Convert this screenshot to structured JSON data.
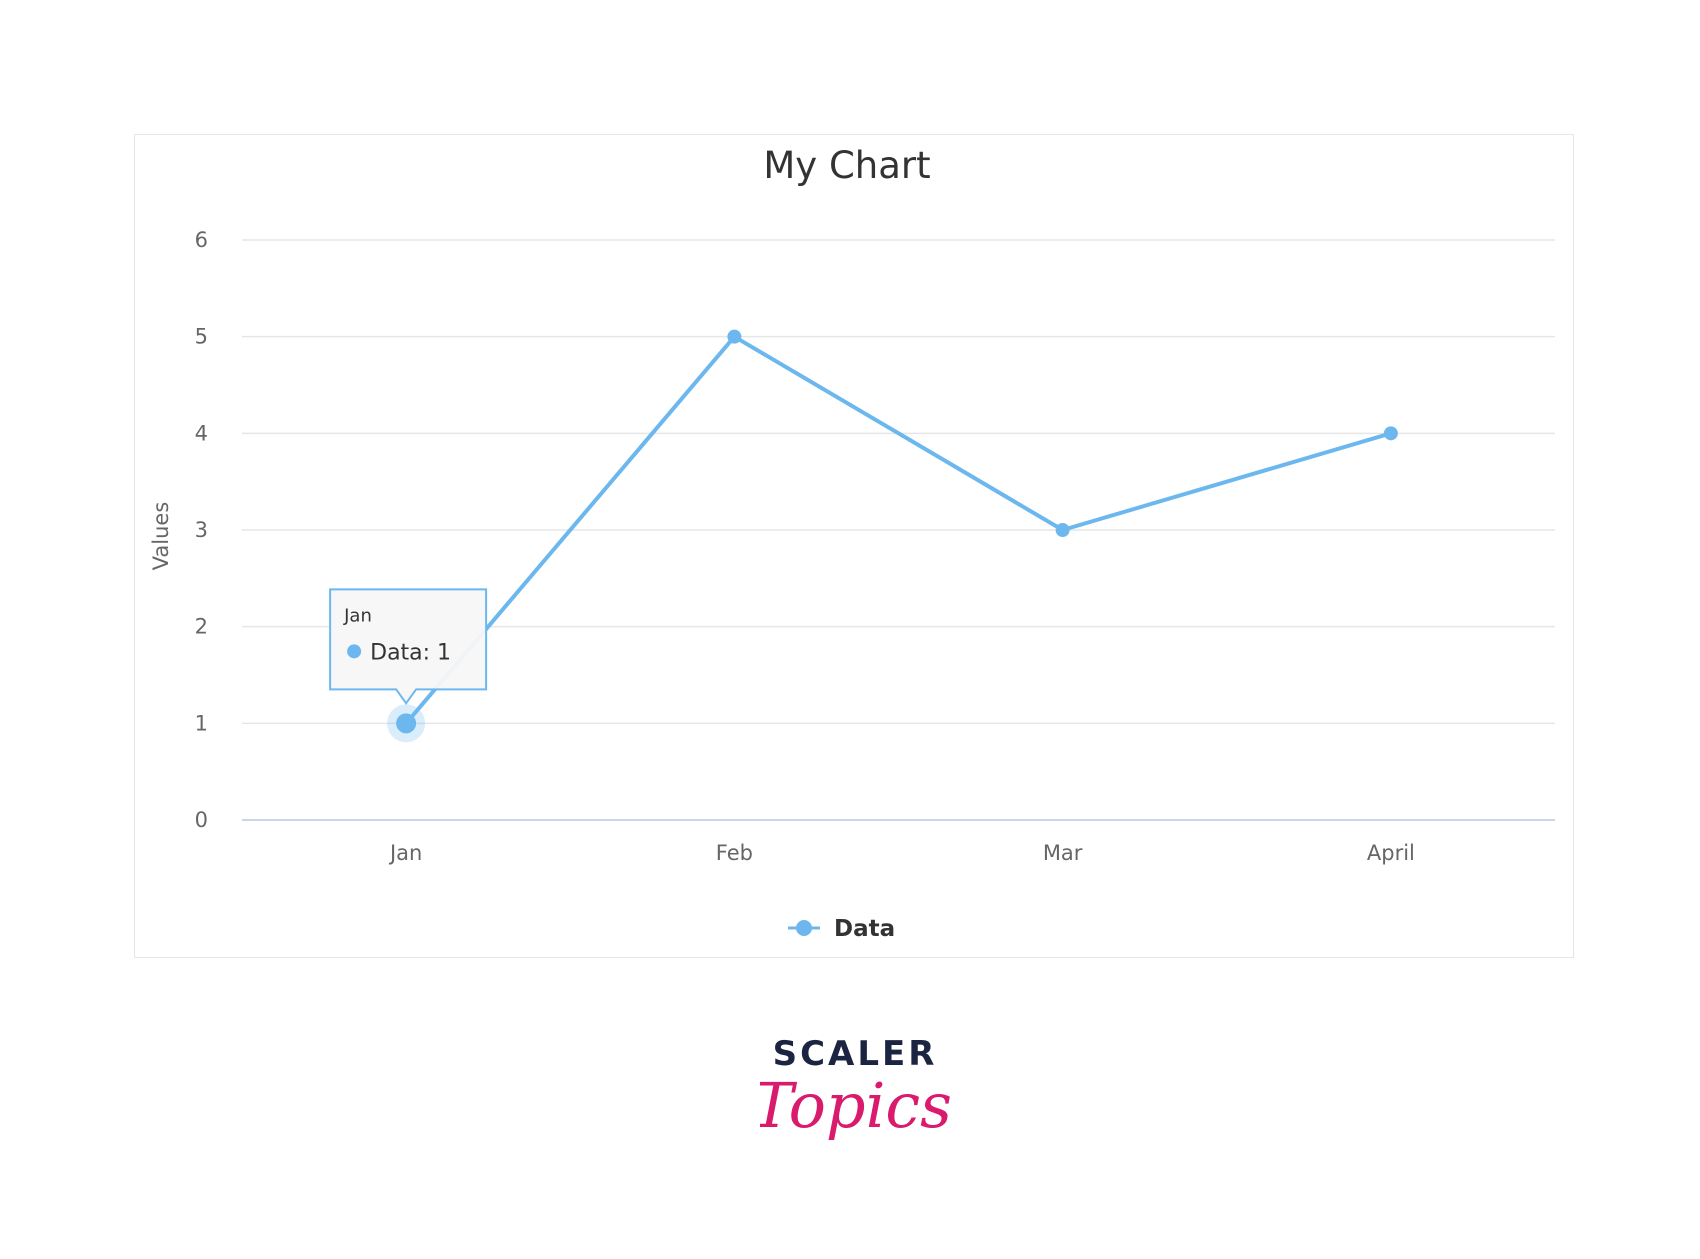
{
  "chart_data": {
    "type": "line",
    "title": "My Chart",
    "ylabel": "Values",
    "xlabel": "",
    "categories": [
      "Jan",
      "Feb",
      "Mar",
      "April"
    ],
    "series": [
      {
        "name": "Data",
        "values": [
          1,
          5,
          3,
          4
        ],
        "color": "#6cb8ee"
      }
    ],
    "ylim": [
      0,
      6
    ],
    "yticks": [
      "0",
      "1",
      "2",
      "3",
      "4",
      "5",
      "6"
    ],
    "grid": true,
    "legend": "bottom-center",
    "tooltip": {
      "category": "Jan",
      "label": "Data: 1"
    }
  },
  "brand": {
    "word": "SCALER",
    "script": "Topics",
    "word_color": "#1b2541",
    "script_color": "#d91a6d"
  }
}
